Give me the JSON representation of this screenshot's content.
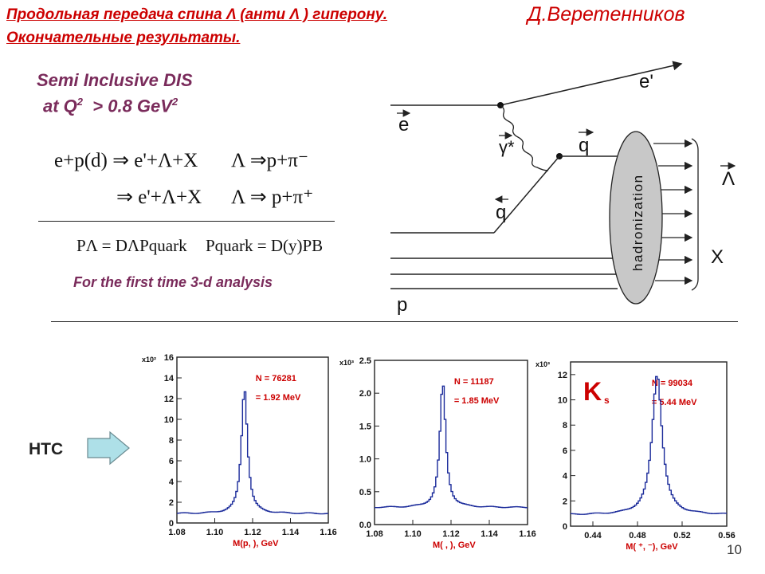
{
  "header": {
    "title_line1": "Продольная передача спина Λ (анти Λ ) гиперону.",
    "title_line2": "Окончательные результаты.",
    "author": "Д.Веретенников"
  },
  "left": {
    "sidis": "Semi Inclusive DIS",
    "q2_prefix": "at Q",
    "q2_exp": "2",
    "q2_mid": "  > 0.8 GeV",
    "q2_exp2": "2",
    "eq1_lhs": "e+p(d) ⇒ e'+Λ+X",
    "eq1_rhs": "Λ ⇒p+π⁻",
    "eq2_lhs": "⇒ e'+Λ+X",
    "eq2_rhs": "Λ ⇒ p+π⁺",
    "eq3_a": "PΛ = DΛPquark",
    "eq3_b": "Pquark = D(y)PB",
    "first_time": "For the first time 3-d analysis"
  },
  "diagram": {
    "e_in": "e",
    "e_out": "e'",
    "photon": "γ*",
    "quark": "q",
    "quark_in": "q",
    "hadronization": "hadronization",
    "lambda": "Λ",
    "x_label": "X",
    "proton": "p"
  },
  "htc": {
    "label": "HTC"
  },
  "page_number": "10",
  "colors": {
    "title": "#cc0000",
    "accent": "#7a2b5b",
    "hist_line": "#1a2a9a",
    "arrow_fill": "#aee0e8",
    "blob": "#c8c8c8"
  },
  "chart_data": [
    {
      "type": "line",
      "y_scale_label": "x10²",
      "xlabel": "M(p,  ), GeV",
      "annotations": [
        "N  = 76281",
        "= 1.92 MeV"
      ],
      "xlim": [
        1.08,
        1.16
      ],
      "ylim": [
        0,
        16
      ],
      "x_ticks": [
        "1.08",
        "1.10",
        "1.12",
        "1.14",
        "1.16"
      ],
      "y_ticks": [
        "0",
        "2",
        "4",
        "6",
        "8",
        "10",
        "12",
        "14",
        "16"
      ],
      "peak_x": 1.1157,
      "peak_y": 13.0,
      "width": 0.0019,
      "background": 0.9
    },
    {
      "type": "line",
      "y_scale_label": "x10³",
      "xlabel": "M(  ,    ), GeV",
      "annotations": [
        "N  = 11187",
        "= 1.85 MeV"
      ],
      "xlim": [
        1.08,
        1.16
      ],
      "ylim": [
        0,
        2.5
      ],
      "x_ticks": [
        "1.08",
        "1.10",
        "1.12",
        "1.14",
        "1.16"
      ],
      "y_ticks": [
        "0.0",
        "0.5",
        "1.0",
        "1.5",
        "2.0",
        "2.5"
      ],
      "peak_x": 1.1157,
      "peak_y": 2.15,
      "width": 0.00185,
      "background": 0.26
    },
    {
      "type": "line",
      "y_scale_label": "x10³",
      "xlabel": "M(  ⁺,  ⁻), GeV",
      "annotations": [
        "N  = 99034",
        "= 5.44 MeV"
      ],
      "big_label": "K",
      "big_label_sub": "s",
      "xlim": [
        0.42,
        0.56
      ],
      "ylim": [
        0,
        13
      ],
      "x_ticks": [
        "0.44",
        "0.48",
        "0.52",
        "0.56"
      ],
      "y_ticks": [
        "0",
        "2",
        "4",
        "6",
        "8",
        "10",
        "12"
      ],
      "peak_x": 0.4976,
      "peak_y": 12.0,
      "width": 0.0054,
      "background": 0.9
    }
  ]
}
